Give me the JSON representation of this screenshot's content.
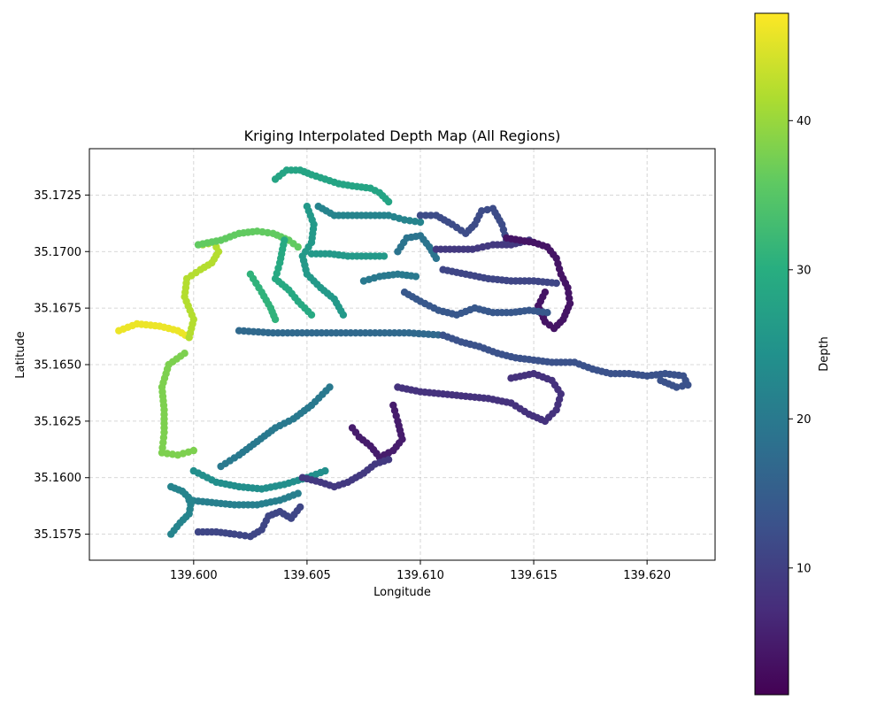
{
  "chart_data": {
    "type": "scatter",
    "title": "Kriging Interpolated Depth Map (All Regions)",
    "xlabel": "Longitude",
    "ylabel": "Latitude",
    "xlim": [
      139.5954,
      139.623
    ],
    "ylim": [
      35.15635,
      35.17455
    ],
    "x_ticks": [
      139.6,
      139.605,
      139.61,
      139.615,
      139.62
    ],
    "x_tick_labels": [
      "139.600",
      "139.605",
      "139.610",
      "139.615",
      "139.620"
    ],
    "y_ticks": [
      35.1575,
      35.16,
      35.1625,
      35.165,
      35.1675,
      35.17,
      35.1725
    ],
    "y_tick_labels": [
      "35.1575",
      "35.1600",
      "35.1625",
      "35.1650",
      "35.1675",
      "35.1700",
      "35.1725"
    ],
    "grid": true,
    "colormap": "viridis",
    "colorbar": {
      "label": "Depth",
      "range": [
        1.5,
        47.2
      ],
      "ticks": [
        10,
        20,
        30,
        40
      ],
      "tick_labels": [
        "10",
        "20",
        "30",
        "40"
      ]
    },
    "tracks": [
      {
        "depth": 46,
        "points": [
          [
            139.5967,
            35.1665
          ],
          [
            139.5975,
            35.1668
          ],
          [
            139.5985,
            35.1667
          ],
          [
            139.5993,
            35.1665
          ],
          [
            139.5998,
            35.1662
          ]
        ]
      },
      {
        "depth": 42,
        "points": [
          [
            139.5998,
            35.1662
          ],
          [
            139.6,
            35.167
          ],
          [
            139.5996,
            35.168
          ],
          [
            139.5997,
            35.1688
          ],
          [
            139.6003,
            35.1692
          ],
          [
            139.6008,
            35.1695
          ],
          [
            139.6011,
            35.17
          ],
          [
            139.6009,
            35.1704
          ],
          [
            139.6004,
            35.1703
          ]
        ]
      },
      {
        "depth": 38,
        "points": [
          [
            139.5996,
            35.1655
          ],
          [
            139.5989,
            35.165
          ],
          [
            139.5986,
            35.164
          ],
          [
            139.5987,
            35.163
          ],
          [
            139.5987,
            35.162
          ],
          [
            139.5986,
            35.1611
          ],
          [
            139.5993,
            35.161
          ],
          [
            139.6,
            35.1612
          ]
        ]
      },
      {
        "depth": 36,
        "points": [
          [
            139.6002,
            35.1703
          ],
          [
            139.6012,
            35.1705
          ],
          [
            139.602,
            35.1708
          ],
          [
            139.6028,
            35.1709
          ],
          [
            139.6035,
            35.1708
          ],
          [
            139.6042,
            35.1705
          ],
          [
            139.6046,
            35.1702
          ]
        ]
      },
      {
        "depth": 28,
        "points": [
          [
            139.6036,
            35.1732
          ],
          [
            139.6041,
            35.1736
          ],
          [
            139.6047,
            35.1736
          ],
          [
            139.6052,
            35.1734
          ],
          [
            139.6058,
            35.1732
          ],
          [
            139.6064,
            35.173
          ],
          [
            139.607,
            35.1729
          ],
          [
            139.6078,
            35.1728
          ],
          [
            139.6082,
            35.1726
          ],
          [
            139.6086,
            35.1722
          ]
        ]
      },
      {
        "depth": 29,
        "points": [
          [
            139.604,
            35.1705
          ],
          [
            139.6038,
            35.1695
          ],
          [
            139.6036,
            35.1688
          ],
          [
            139.6042,
            35.1683
          ],
          [
            139.6046,
            35.1678
          ],
          [
            139.6052,
            35.1672
          ]
        ]
      },
      {
        "depth": 31,
        "points": [
          [
            139.6025,
            35.169
          ],
          [
            139.603,
            35.1682
          ],
          [
            139.6034,
            35.1675
          ],
          [
            139.6036,
            35.167
          ]
        ]
      },
      {
        "depth": 26,
        "points": [
          [
            139.605,
            35.172
          ],
          [
            139.6053,
            35.1712
          ],
          [
            139.6052,
            35.1704
          ],
          [
            139.6048,
            35.1698
          ],
          [
            139.605,
            35.169
          ],
          [
            139.6056,
            35.1684
          ],
          [
            139.6062,
            35.1679
          ],
          [
            139.6066,
            35.1672
          ]
        ]
      },
      {
        "depth": 22,
        "points": [
          [
            139.6055,
            35.172
          ],
          [
            139.6062,
            35.1716
          ],
          [
            139.607,
            35.1716
          ],
          [
            139.6078,
            35.1716
          ],
          [
            139.6086,
            35.1716
          ],
          [
            139.6093,
            35.1714
          ],
          [
            139.61,
            35.1713
          ]
        ]
      },
      {
        "depth": 26,
        "points": [
          [
            139.6052,
            35.1699
          ],
          [
            139.606,
            35.1699
          ],
          [
            139.6068,
            35.1698
          ],
          [
            139.6076,
            35.1698
          ],
          [
            139.6084,
            35.1698
          ]
        ]
      },
      {
        "depth": 20,
        "points": [
          [
            139.6075,
            35.1687
          ],
          [
            139.6082,
            35.1689
          ],
          [
            139.609,
            35.169
          ],
          [
            139.6098,
            35.1689
          ]
        ]
      },
      {
        "depth": 19,
        "points": [
          [
            139.609,
            35.17
          ],
          [
            139.6094,
            35.1706
          ],
          [
            139.61,
            35.1707
          ],
          [
            139.6104,
            35.1702
          ],
          [
            139.6107,
            35.1697
          ]
        ]
      },
      {
        "depth": 12,
        "points": [
          [
            139.61,
            35.1716
          ],
          [
            139.6107,
            35.1716
          ],
          [
            139.6114,
            35.1712
          ],
          [
            139.612,
            35.1708
          ],
          [
            139.6124,
            35.1712
          ],
          [
            139.6127,
            35.1718
          ],
          [
            139.6132,
            35.1719
          ],
          [
            139.6136,
            35.1712
          ],
          [
            139.6138,
            35.1705
          ]
        ]
      },
      {
        "depth": 9,
        "points": [
          [
            139.6107,
            35.1701
          ],
          [
            139.6115,
            35.1701
          ],
          [
            139.6123,
            35.1701
          ],
          [
            139.6132,
            35.1703
          ],
          [
            139.614,
            35.1703
          ],
          [
            139.6148,
            35.1705
          ]
        ]
      },
      {
        "depth": 4,
        "points": [
          [
            139.6138,
            35.1706
          ],
          [
            139.6144,
            35.1705
          ],
          [
            139.615,
            35.1704
          ],
          [
            139.6156,
            35.1702
          ],
          [
            139.616,
            35.1697
          ],
          [
            139.6162,
            35.169
          ],
          [
            139.6165,
            35.1684
          ],
          [
            139.6166,
            35.1677
          ],
          [
            139.6163,
            35.167
          ],
          [
            139.6159,
            35.1666
          ],
          [
            139.6155,
            35.1669
          ],
          [
            139.6152,
            35.1676
          ],
          [
            139.6155,
            35.1682
          ]
        ]
      },
      {
        "depth": 14,
        "points": [
          [
            139.6093,
            35.1682
          ],
          [
            139.61,
            35.1678
          ],
          [
            139.6108,
            35.1674
          ],
          [
            139.6116,
            35.1672
          ],
          [
            139.6124,
            35.1675
          ],
          [
            139.6132,
            35.1673
          ],
          [
            139.614,
            35.1673
          ],
          [
            139.6148,
            35.1674
          ],
          [
            139.6156,
            35.1673
          ]
        ]
      },
      {
        "depth": 11,
        "points": [
          [
            139.611,
            35.1692
          ],
          [
            139.612,
            35.169
          ],
          [
            139.613,
            35.1688
          ],
          [
            139.614,
            35.1687
          ],
          [
            139.615,
            35.1687
          ],
          [
            139.616,
            35.1686
          ]
        ]
      },
      {
        "depth": 17,
        "points": [
          [
            139.602,
            35.1665
          ],
          [
            139.6035,
            35.1664
          ],
          [
            139.605,
            35.1664
          ],
          [
            139.6065,
            35.1664
          ],
          [
            139.608,
            35.1664
          ],
          [
            139.6095,
            35.1664
          ],
          [
            139.611,
            35.1663
          ]
        ]
      },
      {
        "depth": 13,
        "points": [
          [
            139.611,
            35.1663
          ],
          [
            139.6118,
            35.166
          ],
          [
            139.6126,
            35.1658
          ],
          [
            139.6134,
            35.1655
          ],
          [
            139.6142,
            35.1653
          ],
          [
            139.615,
            35.1652
          ],
          [
            139.6158,
            35.1651
          ]
        ]
      },
      {
        "depth": 13,
        "points": [
          [
            139.616,
            35.1651
          ],
          [
            139.6168,
            35.1651
          ],
          [
            139.6176,
            35.1648
          ],
          [
            139.6184,
            35.1646
          ],
          [
            139.6192,
            35.1646
          ],
          [
            139.62,
            35.1645
          ],
          [
            139.6208,
            35.1646
          ],
          [
            139.6216,
            35.1645
          ],
          [
            139.6218,
            35.1641
          ],
          [
            139.6213,
            35.164
          ],
          [
            139.6206,
            35.1643
          ]
        ]
      },
      {
        "depth": 8,
        "points": [
          [
            139.609,
            35.164
          ],
          [
            139.61,
            35.1638
          ],
          [
            139.611,
            35.1637
          ],
          [
            139.612,
            35.1636
          ],
          [
            139.613,
            35.1635
          ],
          [
            139.614,
            35.1633
          ],
          [
            139.6148,
            35.1628
          ],
          [
            139.6155,
            35.1625
          ],
          [
            139.616,
            35.163
          ],
          [
            139.6162,
            35.1637
          ],
          [
            139.6158,
            35.1643
          ],
          [
            139.615,
            35.1646
          ],
          [
            139.614,
            35.1644
          ]
        ]
      },
      {
        "depth": 5,
        "points": [
          [
            139.6088,
            35.1632
          ],
          [
            139.609,
            35.1625
          ],
          [
            139.6092,
            35.1617
          ],
          [
            139.6088,
            35.1612
          ],
          [
            139.6082,
            35.1609
          ],
          [
            139.6078,
            35.1614
          ],
          [
            139.6073,
            35.1618
          ],
          [
            139.607,
            35.1622
          ]
        ]
      },
      {
        "depth": 20,
        "points": [
          [
            139.606,
            35.164
          ],
          [
            139.6052,
            35.1632
          ],
          [
            139.6044,
            35.1626
          ],
          [
            139.6036,
            35.1622
          ],
          [
            139.6028,
            35.1616
          ],
          [
            139.602,
            35.161
          ],
          [
            139.6012,
            35.1605
          ]
        ]
      },
      {
        "depth": 24,
        "points": [
          [
            139.6,
            35.1603
          ],
          [
            139.601,
            35.1598
          ],
          [
            139.602,
            35.1596
          ],
          [
            139.603,
            35.1595
          ],
          [
            139.604,
            35.1597
          ],
          [
            139.605,
            35.16
          ],
          [
            139.6058,
            35.1603
          ]
        ]
      },
      {
        "depth": 21,
        "points": [
          [
            139.5998,
            35.159
          ],
          [
            139.6008,
            35.1589
          ],
          [
            139.6018,
            35.1588
          ],
          [
            139.6028,
            35.1588
          ],
          [
            139.6038,
            35.159
          ],
          [
            139.6046,
            35.1593
          ]
        ]
      },
      {
        "depth": 22,
        "points": [
          [
            139.599,
            35.1575
          ],
          [
            139.5994,
            35.158
          ],
          [
            139.5998,
            35.1584
          ],
          [
            139.5999,
            35.159
          ],
          [
            139.5995,
            35.1594
          ],
          [
            139.599,
            35.1596
          ]
        ]
      },
      {
        "depth": 11,
        "points": [
          [
            139.6002,
            35.1576
          ],
          [
            139.601,
            35.1576
          ],
          [
            139.6018,
            35.1575
          ],
          [
            139.6025,
            35.1574
          ],
          [
            139.603,
            35.1577
          ],
          [
            139.6033,
            35.1583
          ],
          [
            139.6038,
            35.1585
          ],
          [
            139.6043,
            35.1582
          ],
          [
            139.6047,
            35.1587
          ]
        ]
      },
      {
        "depth": 9,
        "points": [
          [
            139.6048,
            35.16
          ],
          [
            139.6056,
            35.1598
          ],
          [
            139.6062,
            35.1596
          ],
          [
            139.6068,
            35.1598
          ],
          [
            139.6075,
            35.1602
          ],
          [
            139.608,
            35.1606
          ],
          [
            139.6086,
            35.1608
          ]
        ]
      }
    ]
  }
}
